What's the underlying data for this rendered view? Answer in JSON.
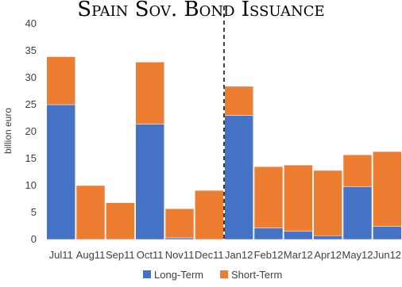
{
  "chart_data": {
    "type": "bar",
    "stacked": true,
    "title": "Spain Sov. Bond Issuance",
    "ylabel": "billion euro",
    "ylim": [
      0,
      40
    ],
    "yticks": [
      0,
      5,
      10,
      15,
      20,
      25,
      30,
      35,
      40
    ],
    "categories": [
      "Jul11",
      "Aug11",
      "Sep11",
      "Oct11",
      "Nov11",
      "Dec11",
      "Jan12",
      "Feb12",
      "Mar12",
      "Apr12",
      "May12",
      "Jun12"
    ],
    "series": [
      {
        "name": "Long-Term",
        "color": "#4472C4",
        "values": [
          25.0,
          0,
          0,
          21.4,
          0.3,
          0,
          23.0,
          2.1,
          1.5,
          0.7,
          9.8,
          2.4
        ]
      },
      {
        "name": "Short-Term",
        "color": "#ED7D31",
        "values": [
          8.9,
          10.0,
          6.8,
          11.5,
          5.4,
          9.1,
          5.4,
          11.4,
          12.3,
          12.1,
          5.9,
          13.9
        ]
      }
    ],
    "divider_after_category": "Dec11",
    "legend_position": "bottom",
    "grid": false
  }
}
